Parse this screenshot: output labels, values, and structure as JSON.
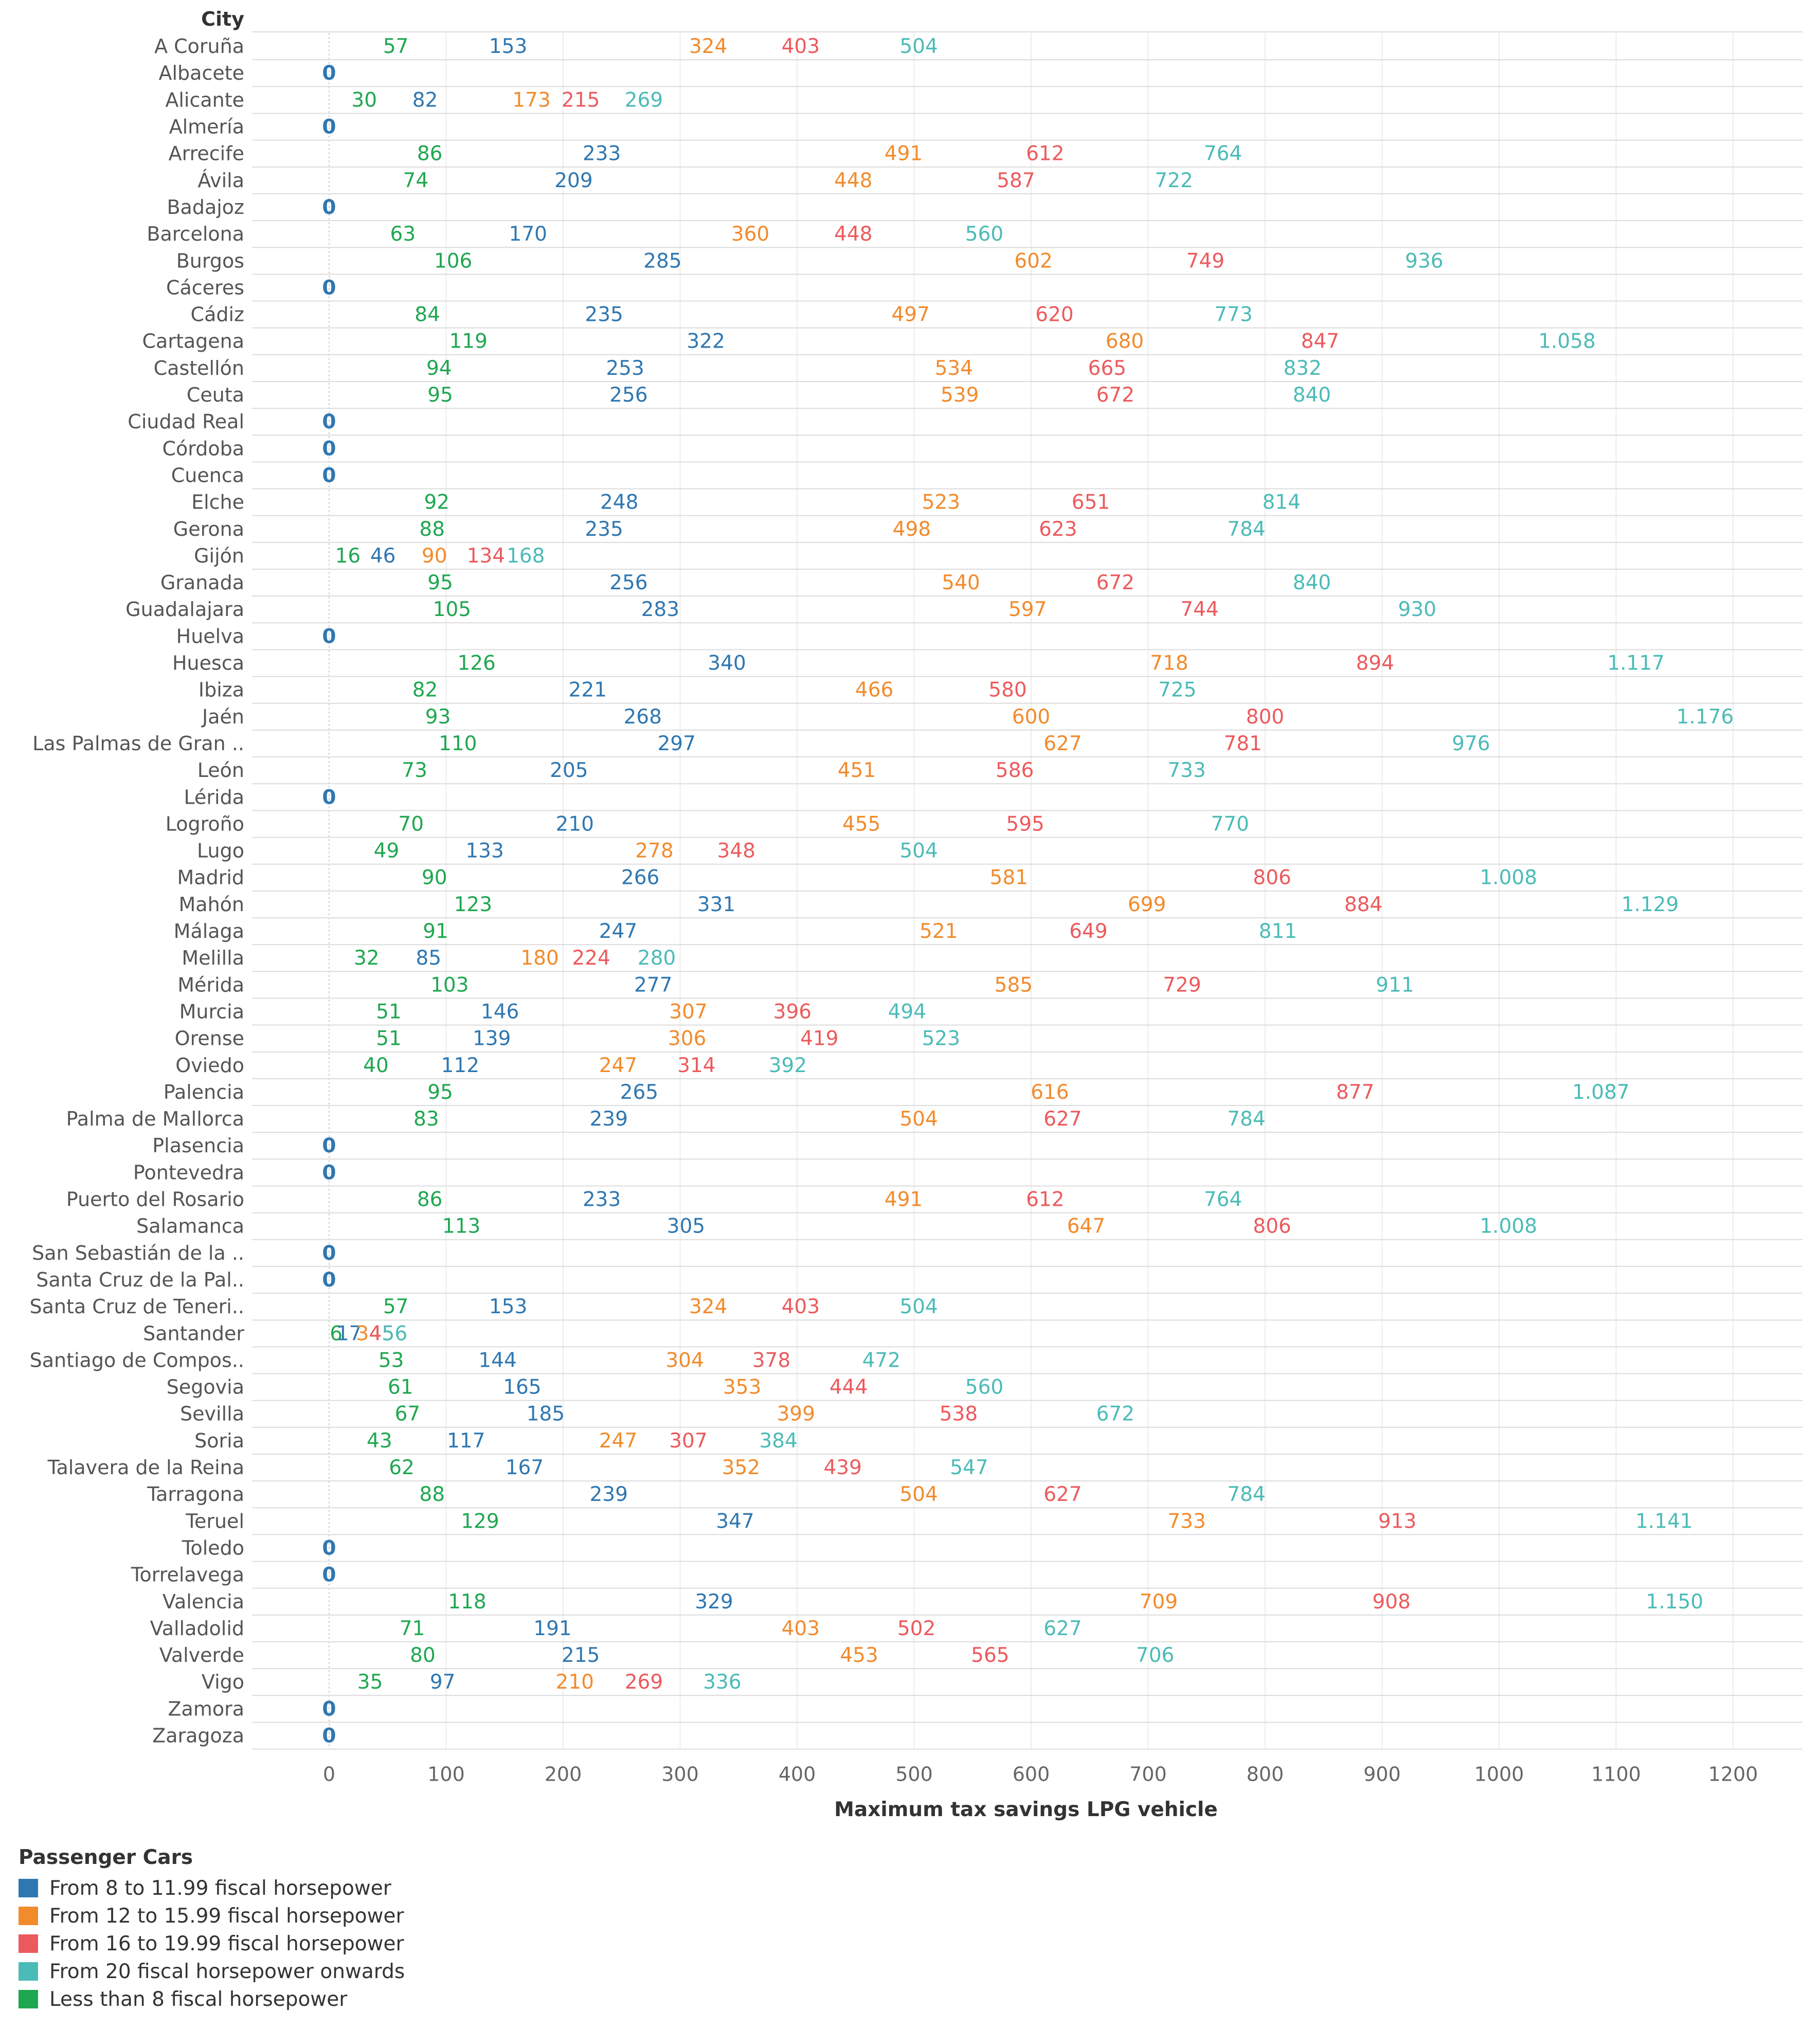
{
  "chart_data": {
    "type": "scatter",
    "row_header": "City",
    "xlabel": "Maximum tax savings LPG vehicle",
    "xlim": [
      0,
      1200
    ],
    "xticks": [
      0,
      100,
      200,
      300,
      400,
      500,
      600,
      700,
      800,
      900,
      1000,
      1100,
      1200
    ],
    "legend_title": "Passenger Cars",
    "legend": [
      {
        "name": "From 8 to 11.99 fiscal horsepower",
        "color": "#2f77b1"
      },
      {
        "name": "From 12 to 15.99 fiscal horsepower",
        "color": "#f28b2c"
      },
      {
        "name": "From 16 to 19.99 fiscal horsepower",
        "color": "#ec5a5d"
      },
      {
        "name": "From 20 fiscal horsepower onwards",
        "color": "#4bbbb7"
      },
      {
        "name": "Less than 8 fiscal horsepower",
        "color": "#1fa750"
      }
    ],
    "series_order": [
      "lt8",
      "8to12",
      "12to16",
      "16to20",
      "20plus"
    ],
    "series_colors": {
      "lt8": "#1fa750",
      "8to12": "#2f77b1",
      "12to16": "#f28b2c",
      "16to20": "#ec5a5d",
      "20plus": "#4bbbb7"
    },
    "zero_color": "#2f77b1",
    "rows": [
      {
        "city": "A Coruña",
        "values": [
          57,
          153,
          324,
          403,
          504
        ],
        "labels": [
          "57",
          "153",
          "324",
          "403",
          "504"
        ]
      },
      {
        "city": "Albacete",
        "values": [
          0
        ],
        "labels": [
          "0"
        ]
      },
      {
        "city": "Alicante",
        "values": [
          30,
          82,
          173,
          215,
          269
        ],
        "labels": [
          "30",
          "82",
          "173",
          "215",
          "269"
        ]
      },
      {
        "city": "Almería",
        "values": [
          0
        ],
        "labels": [
          "0"
        ]
      },
      {
        "city": "Arrecife",
        "values": [
          86,
          233,
          491,
          612,
          764
        ],
        "labels": [
          "86",
          "233",
          "491",
          "612",
          "764"
        ]
      },
      {
        "city": "Ávila",
        "values": [
          74,
          209,
          448,
          587,
          722
        ],
        "labels": [
          "74",
          "209",
          "448",
          "587",
          "722"
        ]
      },
      {
        "city": "Badajoz",
        "values": [
          0
        ],
        "labels": [
          "0"
        ]
      },
      {
        "city": "Barcelona",
        "values": [
          63,
          170,
          360,
          448,
          560
        ],
        "labels": [
          "63",
          "170",
          "360",
          "448",
          "560"
        ]
      },
      {
        "city": "Burgos",
        "values": [
          106,
          285,
          602,
          749,
          936
        ],
        "labels": [
          "106",
          "285",
          "602",
          "749",
          "936"
        ]
      },
      {
        "city": "Cáceres",
        "values": [
          0
        ],
        "labels": [
          "0"
        ]
      },
      {
        "city": "Cádiz",
        "values": [
          84,
          235,
          497,
          620,
          773
        ],
        "labels": [
          "84",
          "235",
          "497",
          "620",
          "773"
        ]
      },
      {
        "city": "Cartagena",
        "values": [
          119,
          322,
          680,
          847,
          1058
        ],
        "labels": [
          "119",
          "322",
          "680",
          "847",
          "1.058"
        ]
      },
      {
        "city": "Castellón",
        "values": [
          94,
          253,
          534,
          665,
          832
        ],
        "labels": [
          "94",
          "253",
          "534",
          "665",
          "832"
        ]
      },
      {
        "city": "Ceuta",
        "values": [
          95,
          256,
          539,
          672,
          840
        ],
        "labels": [
          "95",
          "256",
          "539",
          "672",
          "840"
        ]
      },
      {
        "city": "Ciudad Real",
        "values": [
          0
        ],
        "labels": [
          "0"
        ]
      },
      {
        "city": "Córdoba",
        "values": [
          0
        ],
        "labels": [
          "0"
        ]
      },
      {
        "city": "Cuenca",
        "values": [
          0
        ],
        "labels": [
          "0"
        ]
      },
      {
        "city": "Elche",
        "values": [
          92,
          248,
          523,
          651,
          814
        ],
        "labels": [
          "92",
          "248",
          "523",
          "651",
          "814"
        ]
      },
      {
        "city": "Gerona",
        "values": [
          88,
          235,
          498,
          623,
          784
        ],
        "labels": [
          "88",
          "235",
          "498",
          "623",
          "784"
        ]
      },
      {
        "city": "Gijón",
        "values": [
          16,
          46,
          90,
          134,
          168
        ],
        "labels": [
          "16",
          "46",
          "90",
          "134",
          "168"
        ]
      },
      {
        "city": "Granada",
        "values": [
          95,
          256,
          540,
          672,
          840
        ],
        "labels": [
          "95",
          "256",
          "540",
          "672",
          "840"
        ]
      },
      {
        "city": "Guadalajara",
        "values": [
          105,
          283,
          597,
          744,
          930
        ],
        "labels": [
          "105",
          "283",
          "597",
          "744",
          "930"
        ]
      },
      {
        "city": "Huelva",
        "values": [
          0
        ],
        "labels": [
          "0"
        ]
      },
      {
        "city": "Huesca",
        "values": [
          126,
          340,
          718,
          894,
          1117
        ],
        "labels": [
          "126",
          "340",
          "718",
          "894",
          "1.117"
        ]
      },
      {
        "city": "Ibiza",
        "values": [
          82,
          221,
          466,
          580,
          725
        ],
        "labels": [
          "82",
          "221",
          "466",
          "580",
          "725"
        ]
      },
      {
        "city": "Jaén",
        "values": [
          93,
          268,
          600,
          800,
          1176
        ],
        "labels": [
          "93",
          "268",
          "600",
          "800",
          "1.176"
        ]
      },
      {
        "city": "Las Palmas de Gran ..",
        "values": [
          110,
          297,
          627,
          781,
          976
        ],
        "labels": [
          "110",
          "297",
          "627",
          "781",
          "976"
        ]
      },
      {
        "city": "León",
        "values": [
          73,
          205,
          451,
          586,
          733
        ],
        "labels": [
          "73",
          "205",
          "451",
          "586",
          "733"
        ]
      },
      {
        "city": "Lérida",
        "values": [
          0
        ],
        "labels": [
          "0"
        ]
      },
      {
        "city": "Logroño",
        "values": [
          70,
          210,
          455,
          595,
          770
        ],
        "labels": [
          "70",
          "210",
          "455",
          "595",
          "770"
        ]
      },
      {
        "city": "Lugo",
        "values": [
          49,
          133,
          278,
          348,
          504
        ],
        "labels": [
          "49",
          "133",
          "278",
          "348",
          "504"
        ]
      },
      {
        "city": "Madrid",
        "values": [
          90,
          266,
          581,
          806,
          1008
        ],
        "labels": [
          "90",
          "266",
          "581",
          "806",
          "1.008"
        ]
      },
      {
        "city": "Mahón",
        "values": [
          123,
          331,
          699,
          884,
          1129
        ],
        "labels": [
          "123",
          "331",
          "699",
          "884",
          "1.129"
        ]
      },
      {
        "city": "Málaga",
        "values": [
          91,
          247,
          521,
          649,
          811
        ],
        "labels": [
          "91",
          "247",
          "521",
          "649",
          "811"
        ]
      },
      {
        "city": "Melilla",
        "values": [
          32,
          85,
          180,
          224,
          280
        ],
        "labels": [
          "32",
          "85",
          "180",
          "224",
          "280"
        ]
      },
      {
        "city": "Mérida",
        "values": [
          103,
          277,
          585,
          729,
          911
        ],
        "labels": [
          "103",
          "277",
          "585",
          "729",
          "911"
        ]
      },
      {
        "city": "Murcia",
        "values": [
          51,
          146,
          307,
          396,
          494
        ],
        "labels": [
          "51",
          "146",
          "307",
          "396",
          "494"
        ]
      },
      {
        "city": "Orense",
        "values": [
          51,
          139,
          306,
          419,
          523
        ],
        "labels": [
          "51",
          "139",
          "306",
          "419",
          "523"
        ]
      },
      {
        "city": "Oviedo",
        "values": [
          40,
          112,
          247,
          314,
          392
        ],
        "labels": [
          "40",
          "112",
          "247",
          "314",
          "392"
        ]
      },
      {
        "city": "Palencia",
        "values": [
          95,
          265,
          616,
          877,
          1087
        ],
        "labels": [
          "95",
          "265",
          "616",
          "877",
          "1.087"
        ]
      },
      {
        "city": "Palma de Mallorca",
        "values": [
          83,
          239,
          504,
          627,
          784
        ],
        "labels": [
          "83",
          "239",
          "504",
          "627",
          "784"
        ]
      },
      {
        "city": "Plasencia",
        "values": [
          0
        ],
        "labels": [
          "0"
        ]
      },
      {
        "city": "Pontevedra",
        "values": [
          0
        ],
        "labels": [
          "0"
        ]
      },
      {
        "city": "Puerto del Rosario",
        "values": [
          86,
          233,
          491,
          612,
          764
        ],
        "labels": [
          "86",
          "233",
          "491",
          "612",
          "764"
        ]
      },
      {
        "city": "Salamanca",
        "values": [
          113,
          305,
          647,
          806,
          1008
        ],
        "labels": [
          "113",
          "305",
          "647",
          "806",
          "1.008"
        ]
      },
      {
        "city": "San Sebastián de la ..",
        "values": [
          0
        ],
        "labels": [
          "0"
        ]
      },
      {
        "city": "Santa Cruz de la Pal..",
        "values": [
          0
        ],
        "labels": [
          "0"
        ]
      },
      {
        "city": "Santa Cruz de Teneri..",
        "values": [
          57,
          153,
          324,
          403,
          504
        ],
        "labels": [
          "57",
          "153",
          "324",
          "403",
          "504"
        ]
      },
      {
        "city": "Santander",
        "values": [
          6,
          17,
          34,
          45,
          56
        ],
        "labels": [
          "6",
          "17",
          "34",
          "45",
          "56"
        ]
      },
      {
        "city": "Santiago de Compos..",
        "values": [
          53,
          144,
          304,
          378,
          472
        ],
        "labels": [
          "53",
          "144",
          "304",
          "378",
          "472"
        ]
      },
      {
        "city": "Segovia",
        "values": [
          61,
          165,
          353,
          444,
          560
        ],
        "labels": [
          "61",
          "165",
          "353",
          "444",
          "560"
        ]
      },
      {
        "city": "Sevilla",
        "values": [
          67,
          185,
          399,
          538,
          672
        ],
        "labels": [
          "67",
          "185",
          "399",
          "538",
          "672"
        ]
      },
      {
        "city": "Soria",
        "values": [
          43,
          117,
          247,
          307,
          384
        ],
        "labels": [
          "43",
          "117",
          "247",
          "307",
          "384"
        ]
      },
      {
        "city": "Talavera de la Reina",
        "values": [
          62,
          167,
          352,
          439,
          547
        ],
        "labels": [
          "62",
          "167",
          "352",
          "439",
          "547"
        ]
      },
      {
        "city": "Tarragona",
        "values": [
          88,
          239,
          504,
          627,
          784
        ],
        "labels": [
          "88",
          "239",
          "504",
          "627",
          "784"
        ]
      },
      {
        "city": "Teruel",
        "values": [
          129,
          347,
          733,
          913,
          1141
        ],
        "labels": [
          "129",
          "347",
          "733",
          "913",
          "1.141"
        ]
      },
      {
        "city": "Toledo",
        "values": [
          0
        ],
        "labels": [
          "0"
        ]
      },
      {
        "city": "Torrelavega",
        "values": [
          0
        ],
        "labels": [
          "0"
        ]
      },
      {
        "city": "Valencia",
        "values": [
          118,
          329,
          709,
          908,
          1150
        ],
        "labels": [
          "118",
          "329",
          "709",
          "908",
          "1.150"
        ]
      },
      {
        "city": "Valladolid",
        "values": [
          71,
          191,
          403,
          502,
          627
        ],
        "labels": [
          "71",
          "191",
          "403",
          "502",
          "627"
        ]
      },
      {
        "city": "Valverde",
        "values": [
          80,
          215,
          453,
          565,
          706
        ],
        "labels": [
          "80",
          "215",
          "453",
          "565",
          "706"
        ]
      },
      {
        "city": "Vigo",
        "values": [
          35,
          97,
          210,
          269,
          336
        ],
        "labels": [
          "35",
          "97",
          "210",
          "269",
          "336"
        ]
      },
      {
        "city": "Zamora",
        "values": [
          0
        ],
        "labels": [
          "0"
        ]
      },
      {
        "city": "Zaragoza",
        "values": [
          0
        ],
        "labels": [
          "0"
        ]
      }
    ]
  }
}
